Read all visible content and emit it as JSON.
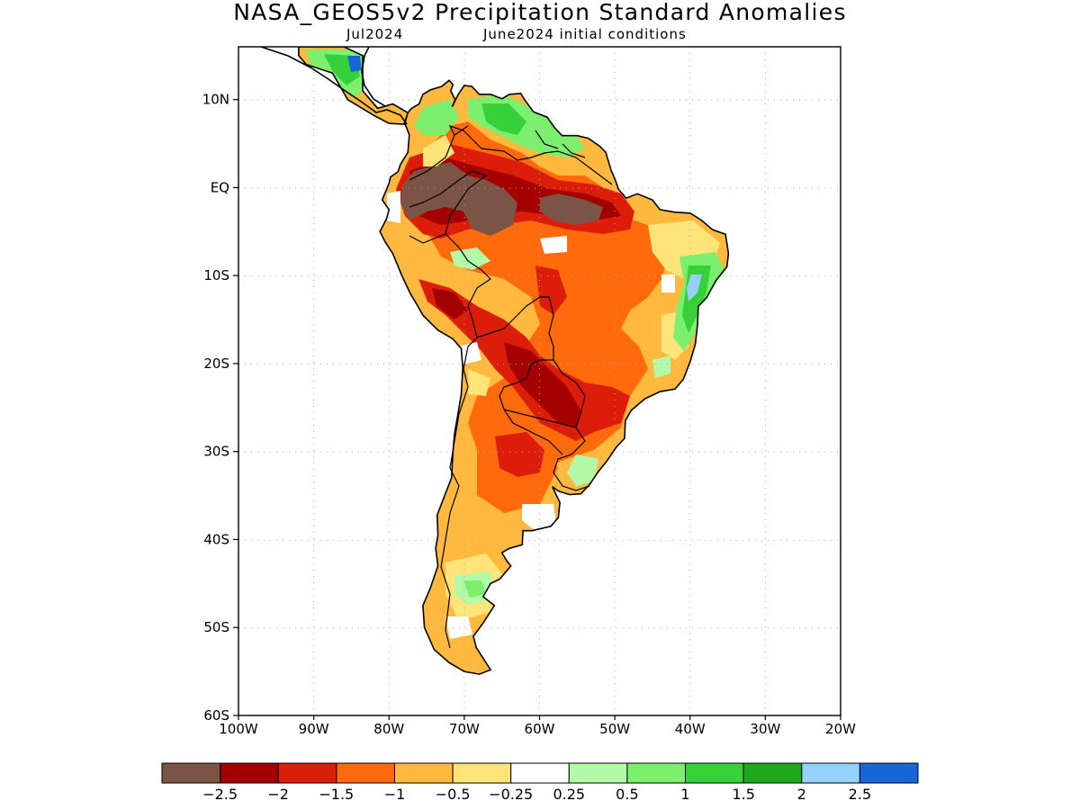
{
  "title": "NASA_GEOS5v2 Precipitation Standard Anomalies",
  "subtitle_left": "Jul2024",
  "subtitle_right": "June2024 initial conditions",
  "axes": {
    "lat_labels": [
      "10N",
      "EQ",
      "10S",
      "20S",
      "30S",
      "40S",
      "50S",
      "60S"
    ],
    "lat_values": [
      10,
      0,
      -10,
      -20,
      -30,
      -40,
      -50,
      -60
    ],
    "lon_labels": [
      "100W",
      "90W",
      "80W",
      "70W",
      "60W",
      "50W",
      "40W",
      "30W",
      "20W"
    ],
    "lon_values": [
      -100,
      -90,
      -80,
      -70,
      -60,
      -50,
      -40,
      -30,
      -20
    ],
    "lat_range": [
      -60,
      16
    ],
    "lon_range": [
      -100,
      -20
    ],
    "grid": "dotted"
  },
  "colorbar": {
    "colors": [
      "#7c5446",
      "#a50000",
      "#dc1d0a",
      "#ff6a0d",
      "#ffb93e",
      "#ffe47a",
      "#ffffff",
      "#b3f9a8",
      "#7cf06e",
      "#37d038",
      "#1daa1f",
      "#95d1fa",
      "#1766d8"
    ],
    "labels": [
      "−2.5",
      "−2",
      "−1.5",
      "−1",
      "−0.5",
      "−0.25",
      "0.25",
      "0.5",
      "1",
      "1.5",
      "2",
      "2.5"
    ]
  }
}
